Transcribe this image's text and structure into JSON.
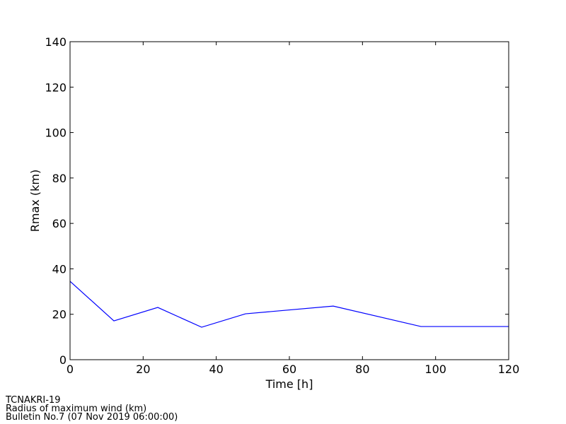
{
  "chart_data": {
    "type": "line",
    "xlabel": "Time [h]",
    "ylabel": "Rmax (km)",
    "x": [
      0,
      12,
      24,
      36,
      48,
      72,
      96,
      120
    ],
    "series": [
      {
        "name": "Rmax",
        "color": "#0000ff",
        "values": [
          34.5,
          17.1,
          23.0,
          14.3,
          20.2,
          23.6,
          14.6,
          14.6
        ]
      }
    ],
    "xlim": [
      0,
      120
    ],
    "xticks": [
      0,
      20,
      40,
      60,
      80,
      100,
      120
    ],
    "ylim": [
      0,
      140
    ],
    "yticks": [
      0,
      20,
      40,
      60,
      80,
      100,
      120,
      140
    ],
    "grid": false,
    "footer": [
      "TCNAKRI-19",
      "Radius of maximum wind (km)",
      "Bulletin No.7 (07 Nov 2019  06:00:00)"
    ]
  }
}
